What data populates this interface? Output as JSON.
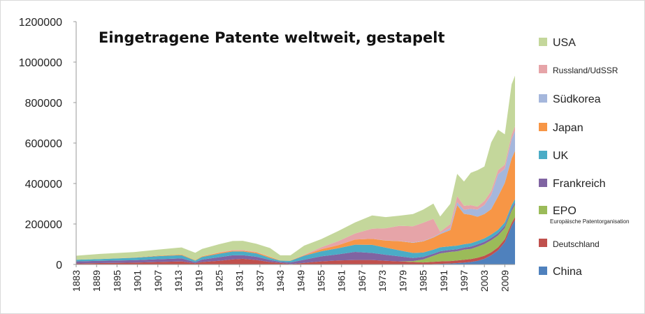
{
  "chart_data": {
    "type": "area",
    "stacked": true,
    "title": "Eingetragene Patente weltweit, gestapelt",
    "xlabel": "",
    "ylabel": "",
    "ylim": [
      0,
      1200000
    ],
    "yticks": [
      "0",
      "200000",
      "400000",
      "600000",
      "800000",
      "1000000",
      "1200000"
    ],
    "xticks": [
      "1883",
      "1889",
      "1895",
      "1901",
      "1907",
      "1913",
      "1919",
      "1925",
      "1931",
      "1937",
      "1943",
      "1949",
      "1955",
      "1961",
      "1967",
      "1973",
      "1979",
      "1985",
      "1991",
      "1997",
      "2003",
      "2009"
    ],
    "xlim": [
      1883,
      2012
    ],
    "legend_position": "right",
    "x": [
      1883,
      1890,
      1900,
      1907,
      1914,
      1918,
      1920,
      1925,
      1929,
      1932,
      1936,
      1940,
      1943,
      1946,
      1950,
      1955,
      1960,
      1965,
      1970,
      1974,
      1978,
      1982,
      1985,
      1988,
      1990,
      1993,
      1995,
      1997,
      1999,
      2001,
      2003,
      2005,
      2007,
      2009,
      2011,
      2012
    ],
    "series": [
      {
        "name": "China",
        "color": "#4f81bd",
        "values": [
          0,
          0,
          0,
          0,
          0,
          0,
          0,
          0,
          0,
          0,
          0,
          0,
          0,
          0,
          0,
          0,
          0,
          0,
          0,
          0,
          0,
          0,
          0,
          2000,
          3000,
          5000,
          7000,
          9000,
          12000,
          18000,
          28000,
          45000,
          70000,
          110000,
          190000,
          220000
        ]
      },
      {
        "name": "Deutschland",
        "color": "#c0504d",
        "values": [
          5000,
          7000,
          9000,
          12000,
          15000,
          6000,
          12000,
          18000,
          25000,
          28000,
          22000,
          12000,
          8000,
          2000,
          8000,
          15000,
          20000,
          22000,
          22000,
          18000,
          15000,
          12000,
          10000,
          11000,
          12000,
          12000,
          13000,
          14000,
          15000,
          15000,
          15000,
          15000,
          15000,
          15000,
          15000,
          15000
        ]
      },
      {
        "name": "EPO",
        "sublabel": "Europäische Patentorganisation",
        "color": "#9bbb59",
        "values": [
          0,
          0,
          0,
          0,
          0,
          0,
          0,
          0,
          0,
          0,
          0,
          0,
          0,
          0,
          0,
          0,
          0,
          0,
          0,
          0,
          0,
          5000,
          15000,
          30000,
          40000,
          45000,
          45000,
          50000,
          50000,
          55000,
          58000,
          60000,
          58000,
          55000,
          60000,
          60000
        ]
      },
      {
        "name": "Frankreich",
        "color": "#8064a2",
        "values": [
          10000,
          11000,
          12000,
          14000,
          15000,
          5000,
          12000,
          18000,
          20000,
          18000,
          16000,
          10000,
          5000,
          8000,
          15000,
          25000,
          30000,
          40000,
          35000,
          30000,
          25000,
          15000,
          12000,
          10000,
          10000,
          10000,
          10000,
          10000,
          11000,
          11000,
          11000,
          11000,
          11000,
          11000,
          11000,
          11000
        ]
      },
      {
        "name": "UK",
        "color": "#4bacc6",
        "values": [
          8000,
          9000,
          12000,
          15000,
          16000,
          8000,
          13000,
          17000,
          19000,
          18000,
          17000,
          10000,
          6000,
          8000,
          20000,
          25000,
          30000,
          36000,
          40000,
          35000,
          30000,
          25000,
          22000,
          20000,
          20000,
          18000,
          18000,
          17000,
          17000,
          17000,
          17000,
          17000,
          17000,
          17000,
          17000,
          17000
        ]
      },
      {
        "name": "Japan",
        "color": "#f79646",
        "values": [
          0,
          0,
          1000,
          2000,
          3000,
          2000,
          3000,
          5000,
          4000,
          4000,
          5000,
          5000,
          1000,
          2000,
          3000,
          10000,
          15000,
          25000,
          30000,
          35000,
          45000,
          50000,
          55000,
          60000,
          65000,
          80000,
          200000,
          150000,
          140000,
          120000,
          120000,
          125000,
          165000,
          195000,
          230000,
          238000
        ]
      },
      {
        "name": "Südkorea",
        "color": "#a5b7dc",
        "values": [
          0,
          0,
          0,
          0,
          0,
          0,
          0,
          0,
          0,
          0,
          0,
          0,
          0,
          0,
          0,
          0,
          0,
          0,
          0,
          1000,
          1000,
          2000,
          2000,
          3000,
          4000,
          10000,
          15000,
          20000,
          30000,
          35000,
          45000,
          70000,
          110000,
          70000,
          95000,
          100000
        ]
      },
      {
        "name": "Russland/UdSSR",
        "color": "#e6a4a8",
        "values": [
          0,
          0,
          0,
          0,
          0,
          0,
          0,
          2000,
          3000,
          4000,
          2000,
          1000,
          0,
          0,
          2000,
          10000,
          20000,
          30000,
          50000,
          60000,
          75000,
          80000,
          90000,
          90000,
          8000,
          20000,
          30000,
          20000,
          18000,
          15000,
          20000,
          20000,
          20000,
          20000,
          22000,
          22000
        ]
      },
      {
        "name": "USA",
        "color": "#c4d79b",
        "values": [
          20000,
          25000,
          27000,
          30000,
          35000,
          37000,
          37000,
          40000,
          45000,
          45000,
          40000,
          43000,
          25000,
          25000,
          45000,
          40000,
          50000,
          55000,
          65000,
          55000,
          50000,
          60000,
          65000,
          75000,
          75000,
          100000,
          110000,
          120000,
          160000,
          180000,
          170000,
          240000,
          200000,
          150000,
          250000,
          250000
        ]
      }
    ]
  }
}
